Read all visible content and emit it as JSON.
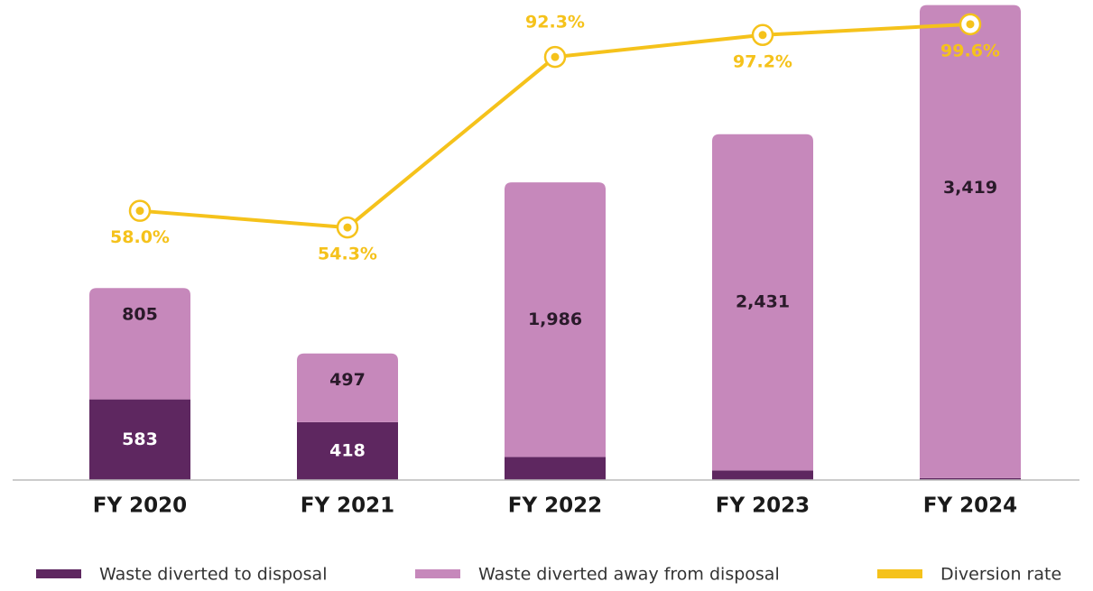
{
  "chart_data": {
    "type": "bar",
    "categories": [
      "FY 2020",
      "FY 2021",
      "FY 2022",
      "FY 2023",
      "FY 2024"
    ],
    "stacked": true,
    "series": [
      {
        "name": "Waste diverted to disposal",
        "color": "#5e2760",
        "values": [
          583,
          418,
          166,
          69,
          14
        ]
      },
      {
        "name": "Waste diverted away from disposal",
        "color": "#c688bb",
        "values": [
          805,
          497,
          1986,
          2431,
          3419
        ],
        "value_labels": [
          "805",
          "497",
          "1,986",
          "2,431",
          "3,419"
        ]
      },
      {
        "name": "Diversion rate",
        "type": "line",
        "axis": "y2",
        "color": "#f5c21b",
        "values": [
          58.0,
          54.3,
          92.3,
          97.2,
          99.6
        ],
        "value_labels": [
          "58.0%",
          "54.3%",
          "92.3%",
          "97.2%",
          "99.6%"
        ]
      }
    ],
    "ylim": [
      0,
      3470
    ],
    "y2lim": [
      -2,
      105
    ]
  }
}
